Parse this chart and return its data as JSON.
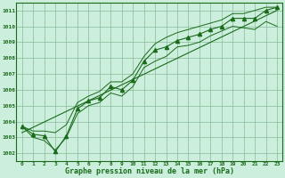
{
  "x": [
    0,
    1,
    2,
    3,
    4,
    5,
    6,
    7,
    8,
    9,
    10,
    11,
    12,
    13,
    14,
    15,
    16,
    17,
    18,
    19,
    20,
    21,
    22,
    23
  ],
  "pressure": [
    1003.7,
    1003.2,
    1003.1,
    1002.1,
    1003.1,
    1004.8,
    1005.3,
    1005.5,
    1006.2,
    1006.0,
    1006.6,
    1007.8,
    1008.5,
    1008.7,
    1009.1,
    1009.3,
    1009.5,
    1009.8,
    1010.0,
    1010.5,
    1010.5,
    1010.5,
    1011.0,
    1011.2
  ],
  "min_envelope": [
    1003.7,
    1003.0,
    1002.8,
    1002.2,
    1003.0,
    1004.5,
    1005.0,
    1005.2,
    1005.8,
    1005.6,
    1006.2,
    1007.4,
    1007.8,
    1008.1,
    1008.7,
    1008.8,
    1009.0,
    1009.4,
    1009.7,
    1010.0,
    1009.9,
    1009.8,
    1010.3,
    1010.0
  ],
  "max_envelope": [
    1003.7,
    1003.4,
    1003.4,
    1003.3,
    1003.8,
    1005.2,
    1005.6,
    1005.9,
    1006.5,
    1006.5,
    1007.0,
    1008.1,
    1008.9,
    1009.3,
    1009.6,
    1009.8,
    1010.0,
    1010.2,
    1010.4,
    1010.8,
    1010.8,
    1011.0,
    1011.2,
    1011.2
  ],
  "trend_x": [
    0,
    23
  ],
  "trend_y": [
    1003.3,
    1011.0
  ],
  "ylim": [
    1001.5,
    1011.5
  ],
  "yticks": [
    1002,
    1003,
    1004,
    1005,
    1006,
    1007,
    1008,
    1009,
    1010,
    1011
  ],
  "xlim": [
    -0.5,
    23.5
  ],
  "xticks": [
    0,
    1,
    2,
    3,
    4,
    5,
    6,
    7,
    8,
    9,
    10,
    11,
    12,
    13,
    14,
    15,
    16,
    17,
    18,
    19,
    20,
    21,
    22,
    23
  ],
  "line_color": "#1a6b1a",
  "bg_color": "#cceedd",
  "grid_color": "#88bb99",
  "xlabel": "Graphe pression niveau de la mer (hPa)",
  "marker": "^",
  "marker_size": 3,
  "lw_main": 0.8,
  "lw_env": 0.7,
  "lw_trend": 0.8
}
